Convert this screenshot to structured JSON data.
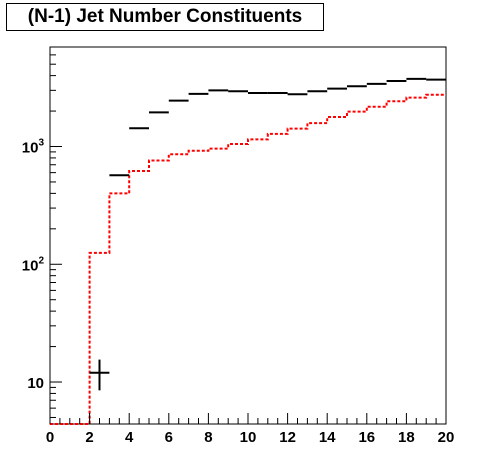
{
  "chart_data": {
    "type": "step",
    "title": "(N-1) Jet Number Constituents",
    "xlabel": "",
    "ylabel": "",
    "xlim": [
      0,
      20
    ],
    "ylim": [
      4.4,
      7000
    ],
    "y_scale": "log",
    "grid": false,
    "x_ticks": [
      "0",
      "2",
      "4",
      "6",
      "8",
      "10",
      "12",
      "14",
      "16",
      "18",
      "20"
    ],
    "y_ticks": [
      {
        "base": "10",
        "exp": "",
        "value": 10
      },
      {
        "base": "10",
        "exp": "2",
        "value": 100
      },
      {
        "base": "10",
        "exp": "3",
        "value": 1000
      }
    ],
    "bin_edges": [
      0,
      1,
      2,
      3,
      4,
      5,
      6,
      7,
      8,
      9,
      10,
      11,
      12,
      13,
      14,
      15,
      16,
      17,
      18,
      19,
      20
    ],
    "series": [
      {
        "style": "black-points",
        "color": "#000000",
        "bins": [
          {
            "x0": 2,
            "x1": 3,
            "y": 12,
            "yerr": 3.5
          },
          {
            "x0": 3,
            "x1": 4,
            "y": 570
          },
          {
            "x0": 4,
            "x1": 5,
            "y": 1430
          },
          {
            "x0": 5,
            "x1": 6,
            "y": 1950
          },
          {
            "x0": 6,
            "x1": 7,
            "y": 2450
          },
          {
            "x0": 7,
            "x1": 8,
            "y": 2800
          },
          {
            "x0": 8,
            "x1": 9,
            "y": 3000
          },
          {
            "x0": 9,
            "x1": 10,
            "y": 2950
          },
          {
            "x0": 10,
            "x1": 11,
            "y": 2850
          },
          {
            "x0": 11,
            "x1": 12,
            "y": 2850
          },
          {
            "x0": 12,
            "x1": 13,
            "y": 2780
          },
          {
            "x0": 13,
            "x1": 14,
            "y": 2950
          },
          {
            "x0": 14,
            "x1": 15,
            "y": 3100
          },
          {
            "x0": 15,
            "x1": 16,
            "y": 3250
          },
          {
            "x0": 16,
            "x1": 17,
            "y": 3400
          },
          {
            "x0": 17,
            "x1": 18,
            "y": 3600
          },
          {
            "x0": 18,
            "x1": 19,
            "y": 3750
          },
          {
            "x0": 19,
            "x1": 20,
            "y": 3700
          }
        ]
      },
      {
        "style": "red-dashed-histogram",
        "color": "#ff0000",
        "values": [
          4.4,
          4.4,
          125,
          400,
          620,
          760,
          860,
          920,
          960,
          1050,
          1150,
          1280,
          1420,
          1580,
          1780,
          1980,
          2180,
          2420,
          2600,
          2750
        ]
      }
    ]
  }
}
